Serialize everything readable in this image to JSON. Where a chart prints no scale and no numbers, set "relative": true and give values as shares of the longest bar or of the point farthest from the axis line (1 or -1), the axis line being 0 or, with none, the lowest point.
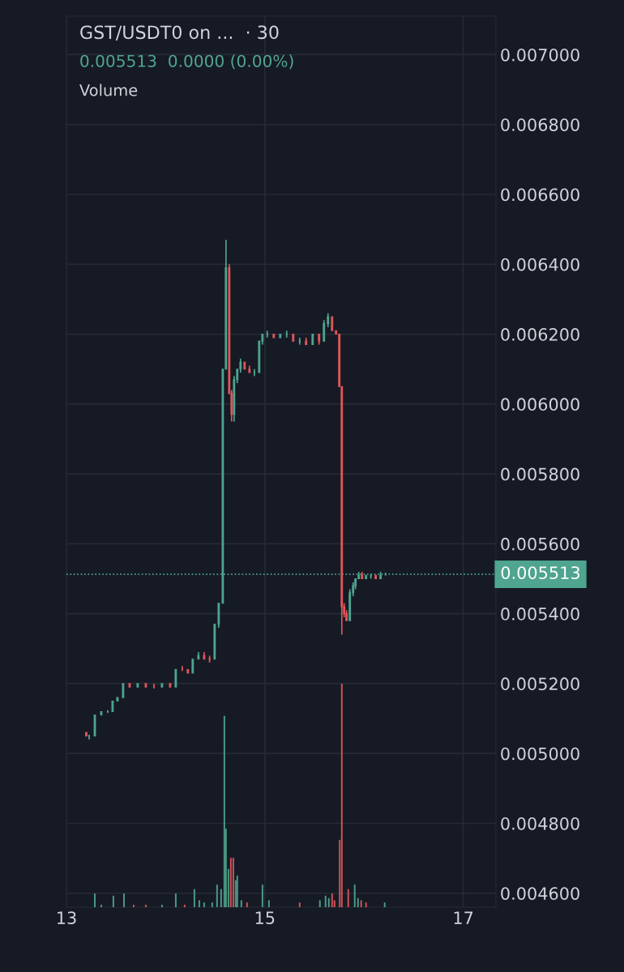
{
  "chart_data": [
    {
      "type": "candlestick",
      "title": "GST/USDT0 on ...  · 30",
      "subtitle": "0.005513  0.0000 (0.00%)",
      "annotations": [
        "Volume"
      ],
      "xlim": [
        13.0,
        17.33
      ],
      "xticks": [
        13,
        15,
        17
      ],
      "ylim": [
        0.00456,
        0.00711
      ],
      "yticks": [
        {
          "value": 0.0046,
          "label": "0.004600"
        },
        {
          "value": 0.0048,
          "label": "0.004800"
        },
        {
          "value": 0.005,
          "label": "0.005000"
        },
        {
          "value": 0.0052,
          "label": "0.005200"
        },
        {
          "value": 0.0054,
          "label": "0.005400"
        },
        {
          "value": 0.0056,
          "label": "0.005600"
        },
        {
          "value": 0.0058,
          "label": "0.005800"
        },
        {
          "value": 0.006,
          "label": "0.006000"
        },
        {
          "value": 0.0062,
          "label": "0.006200"
        },
        {
          "value": 0.0064,
          "label": "0.006400"
        },
        {
          "value": 0.0066,
          "label": "0.006600"
        },
        {
          "value": 0.0068,
          "label": "0.006800"
        },
        {
          "value": 0.007,
          "label": "0.007000"
        }
      ],
      "grid": true,
      "ref_lines": [
        {
          "axis": "y",
          "value": 0.005513,
          "label": "0.005513",
          "color": "#4fa58f",
          "line_style": "dotted"
        }
      ],
      "x": [
        13.2,
        13.229,
        13.286,
        13.351,
        13.416,
        13.465,
        13.514,
        13.571,
        13.637,
        13.718,
        13.8,
        13.882,
        13.963,
        14.045,
        14.102,
        14.167,
        14.224,
        14.273,
        14.331,
        14.388,
        14.443,
        14.494,
        14.535,
        14.576,
        14.608,
        14.641,
        14.665,
        14.69,
        14.722,
        14.755,
        14.796,
        14.845,
        14.894,
        14.943,
        14.976,
        15.024,
        15.09,
        15.155,
        15.22,
        15.286,
        15.351,
        15.416,
        15.482,
        15.547,
        15.596,
        15.637,
        15.678,
        15.718,
        15.751,
        15.776,
        15.8,
        15.824,
        15.857,
        15.89,
        15.914,
        15.947,
        15.98,
        16.02,
        16.069,
        16.118,
        16.167,
        16.216
      ],
      "ohlc": [
        [
          0.00506,
          0.00506,
          0.00505,
          0.00505
        ],
        [
          0.00505,
          0.00505,
          0.00504,
          0.00505
        ],
        [
          0.00505,
          0.00511,
          0.00505,
          0.00511
        ],
        [
          0.00511,
          0.00512,
          0.00511,
          0.00512
        ],
        [
          0.00512,
          0.00512,
          0.00512,
          0.00512
        ],
        [
          0.00512,
          0.00515,
          0.00512,
          0.00515
        ],
        [
          0.00515,
          0.00516,
          0.00515,
          0.00516
        ],
        [
          0.00516,
          0.0052,
          0.00516,
          0.0052
        ],
        [
          0.0052,
          0.0052,
          0.00519,
          0.00519
        ],
        [
          0.00519,
          0.0052,
          0.00519,
          0.0052
        ],
        [
          0.0052,
          0.0052,
          0.00519,
          0.00519
        ],
        [
          0.00519,
          0.0052,
          0.00519,
          0.00519
        ],
        [
          0.00519,
          0.0052,
          0.00519,
          0.0052
        ],
        [
          0.0052,
          0.0052,
          0.00519,
          0.00519
        ],
        [
          0.00519,
          0.00524,
          0.00519,
          0.00524
        ],
        [
          0.00524,
          0.00525,
          0.00524,
          0.00524
        ],
        [
          0.00524,
          0.00524,
          0.00523,
          0.00523
        ],
        [
          0.00523,
          0.00527,
          0.00523,
          0.00527
        ],
        [
          0.00527,
          0.00529,
          0.00527,
          0.00528
        ],
        [
          0.00528,
          0.00529,
          0.00527,
          0.00527
        ],
        [
          0.00527,
          0.00528,
          0.00526,
          0.00527
        ],
        [
          0.00527,
          0.00537,
          0.00527,
          0.00537
        ],
        [
          0.00537,
          0.00543,
          0.00536,
          0.00543
        ],
        [
          0.00543,
          0.0061,
          0.00543,
          0.0061
        ],
        [
          0.0061,
          0.00647,
          0.0061,
          0.00639
        ],
        [
          0.00639,
          0.0064,
          0.00603,
          0.00603
        ],
        [
          0.00603,
          0.00604,
          0.00595,
          0.00597
        ],
        [
          0.00597,
          0.00608,
          0.00595,
          0.00607
        ],
        [
          0.00607,
          0.0061,
          0.00606,
          0.0061
        ],
        [
          0.0061,
          0.00613,
          0.00609,
          0.00612
        ],
        [
          0.00612,
          0.00612,
          0.0061,
          0.0061
        ],
        [
          0.0061,
          0.00611,
          0.00609,
          0.00609
        ],
        [
          0.00609,
          0.0061,
          0.00608,
          0.00609
        ],
        [
          0.00609,
          0.00618,
          0.00609,
          0.00618
        ],
        [
          0.00618,
          0.0062,
          0.00617,
          0.0062
        ],
        [
          0.0062,
          0.00621,
          0.00619,
          0.0062
        ],
        [
          0.0062,
          0.0062,
          0.00619,
          0.00619
        ],
        [
          0.00619,
          0.0062,
          0.00619,
          0.0062
        ],
        [
          0.0062,
          0.00621,
          0.00619,
          0.0062
        ],
        [
          0.0062,
          0.0062,
          0.00618,
          0.00618
        ],
        [
          0.00618,
          0.00619,
          0.00617,
          0.00618
        ],
        [
          0.00618,
          0.00619,
          0.00617,
          0.00617
        ],
        [
          0.00617,
          0.0062,
          0.00617,
          0.0062
        ],
        [
          0.0062,
          0.0062,
          0.00617,
          0.00618
        ],
        [
          0.00618,
          0.00624,
          0.00618,
          0.00623
        ],
        [
          0.00623,
          0.00626,
          0.00622,
          0.00625
        ],
        [
          0.00625,
          0.00625,
          0.00621,
          0.00621
        ],
        [
          0.00621,
          0.00621,
          0.0062,
          0.0062
        ],
        [
          0.0062,
          0.0062,
          0.00605,
          0.00605
        ],
        [
          0.00605,
          0.00605,
          0.00534,
          0.00542
        ],
        [
          0.00542,
          0.00543,
          0.00539,
          0.0054
        ],
        [
          0.0054,
          0.00541,
          0.00538,
          0.00538
        ],
        [
          0.00538,
          0.00547,
          0.00538,
          0.00546
        ],
        [
          0.00546,
          0.00549,
          0.00545,
          0.00548
        ],
        [
          0.00548,
          0.0055,
          0.00547,
          0.0055
        ],
        [
          0.0055,
          0.00552,
          0.0055,
          0.00551
        ],
        [
          0.00551,
          0.00552,
          0.0055,
          0.0055
        ],
        [
          0.0055,
          0.00551,
          0.0055,
          0.00551
        ],
        [
          0.00551,
          0.00551,
          0.0055,
          0.00551
        ],
        [
          0.00551,
          0.00551,
          0.0055,
          0.0055
        ],
        [
          0.0055,
          0.00552,
          0.0055,
          0.00551
        ],
        [
          0.005513,
          0.005513,
          0.005513,
          0.005513
        ]
      ],
      "colors": [
        "#e0575a",
        "#4fa58f",
        "#4fa58f",
        "#4fa58f",
        "#4fa58f",
        "#4fa58f",
        "#4fa58f",
        "#4fa58f",
        "#e0575a",
        "#4fa58f",
        "#e0575a",
        "#e0575a",
        "#4fa58f",
        "#e0575a",
        "#4fa58f",
        "#e0575a",
        "#e0575a",
        "#4fa58f",
        "#4fa58f",
        "#e0575a",
        "#e0575a",
        "#4fa58f",
        "#4fa58f",
        "#4fa58f",
        "#4fa58f",
        "#e0575a",
        "#e0575a",
        "#4fa58f",
        "#4fa58f",
        "#4fa58f",
        "#e0575a",
        "#e0575a",
        "#4fa58f",
        "#4fa58f",
        "#4fa58f",
        "#4fa58f",
        "#e0575a",
        "#4fa58f",
        "#4fa58f",
        "#e0575a",
        "#4fa58f",
        "#e0575a",
        "#4fa58f",
        "#e0575a",
        "#4fa58f",
        "#4fa58f",
        "#e0575a",
        "#e0575a",
        "#e0575a",
        "#e0575a",
        "#e0575a",
        "#e0575a",
        "#4fa58f",
        "#4fa58f",
        "#4fa58f",
        "#4fa58f",
        "#e0575a",
        "#4fa58f",
        "#4fa58f",
        "#e0575a",
        "#4fa58f",
        "#4fa58f"
      ]
    },
    {
      "type": "bar",
      "relative": true,
      "xlim": [
        13.0,
        17.33
      ],
      "x": [
        13.286,
        13.351,
        13.473,
        13.58,
        13.678,
        13.8,
        13.963,
        14.102,
        14.192,
        14.29,
        14.339,
        14.388,
        14.469,
        14.518,
        14.559,
        14.592,
        14.608,
        14.633,
        14.657,
        14.682,
        14.706,
        14.722,
        14.763,
        14.82,
        14.976,
        15.041,
        15.351,
        15.555,
        15.612,
        15.645,
        15.678,
        15.702,
        15.755,
        15.776,
        15.841,
        15.906,
        15.939,
        15.971,
        16.02,
        16.208
      ],
      "values": [
        0.06,
        0.01,
        0.05,
        0.06,
        0.01,
        0.01,
        0.01,
        0.06,
        0.01,
        0.08,
        0.03,
        0.02,
        0.02,
        0.1,
        0.08,
        0.855,
        0.35,
        0.17,
        0.22,
        0.22,
        0.12,
        0.14,
        0.03,
        0.02,
        0.1,
        0.03,
        0.02,
        0.03,
        0.05,
        0.04,
        0.06,
        0.03,
        0.3,
        1,
        0.08,
        0.1,
        0.04,
        0.03,
        0.02,
        0.02
      ],
      "colors": [
        "#4fa58f",
        "#4fa58f",
        "#4fa58f",
        "#4fa58f",
        "#e0575a",
        "#e0575a",
        "#4fa58f",
        "#4fa58f",
        "#e0575a",
        "#4fa58f",
        "#4fa58f",
        "#4fa58f",
        "#4fa58f",
        "#4fa58f",
        "#4fa58f",
        "#4fa58f",
        "#4fa58f",
        "#4fa58f",
        "#e0575a",
        "#e0575a",
        "#4fa58f",
        "#4fa58f",
        "#4fa58f",
        "#e0575a",
        "#4fa58f",
        "#4fa58f",
        "#e0575a",
        "#4fa58f",
        "#4fa58f",
        "#4fa58f",
        "#e0575a",
        "#e0575a",
        "#e0575a",
        "#e0575a",
        "#e0575a",
        "#4fa58f",
        "#4fa58f",
        "#e0575a",
        "#e0575a",
        "#4fa58f"
      ]
    }
  ]
}
